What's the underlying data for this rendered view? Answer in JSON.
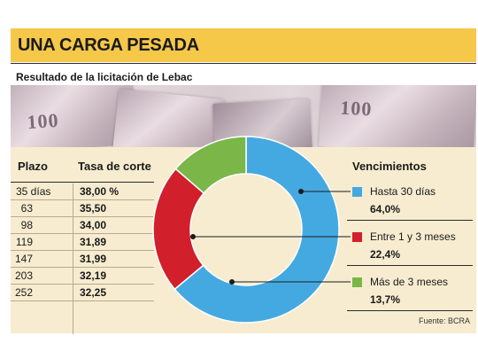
{
  "title": "UNA CARGA PESADA",
  "subtitle": "Resultado de la licitación de Lebac",
  "banknote_label": "100",
  "colors": {
    "title_band": "#f5c84a",
    "background": "#f7ecd0",
    "slice_blue": "#45a9e1",
    "slice_red": "#d11f2b",
    "slice_green": "#7ab648"
  },
  "table": {
    "headers": {
      "plazo": "Plazo",
      "tasa": "Tasa de corte"
    },
    "rows": [
      {
        "plazo": "35 días",
        "tasa": "38,00 %"
      },
      {
        "plazo": "63",
        "tasa": "35,50"
      },
      {
        "plazo": "98",
        "tasa": "34,00"
      },
      {
        "plazo": "119",
        "tasa": "31,89"
      },
      {
        "plazo": "147",
        "tasa": "31,99"
      },
      {
        "plazo": "203",
        "tasa": "32,19"
      },
      {
        "plazo": "252",
        "tasa": "32,25"
      }
    ]
  },
  "chart_data": [
    {
      "type": "table",
      "title": "",
      "columns": [
        "Plazo",
        "Tasa de corte"
      ],
      "rows": [
        [
          "35 días",
          "38,00 %"
        ],
        [
          "63",
          "35,50"
        ],
        [
          "98",
          "34,00"
        ],
        [
          "119",
          "31,89"
        ],
        [
          "147",
          "31,99"
        ],
        [
          "203",
          "32,19"
        ],
        [
          "252",
          "32,25"
        ]
      ]
    },
    {
      "type": "pie",
      "variant": "donut",
      "title": "Vencimientos",
      "categories": [
        "Hasta 30 días",
        "Entre 1 y 3 meses",
        "Más de 3 meses"
      ],
      "values": [
        64.0,
        22.4,
        13.7
      ],
      "value_labels": [
        "64,0%",
        "22,4%",
        "13,7%"
      ],
      "colors": [
        "#45a9e1",
        "#d11f2b",
        "#7ab648"
      ],
      "legend": "right"
    }
  ],
  "legend": {
    "title": "Vencimientos",
    "items": [
      {
        "name": "Hasta 30 días",
        "value": "64,0%"
      },
      {
        "name": "Entre 1 y 3 meses",
        "value": "22,4%"
      },
      {
        "name": "Más de 3 meses",
        "value": "13,7%"
      }
    ]
  },
  "source": "Fuente: BCRA"
}
